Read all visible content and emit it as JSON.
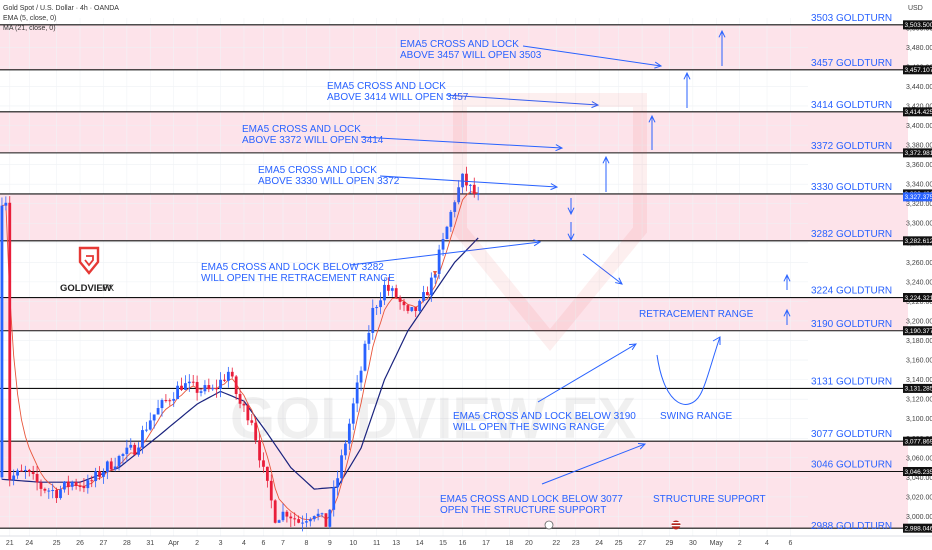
{
  "header": {
    "title": "Gold Spot / U.S. Dollar · 4h · OANDA",
    "ema": "EMA (5, close, 0)",
    "ma": "MA (21, close, 0)",
    "currency": "USD"
  },
  "logo": {
    "text": "GOLDVIEW",
    "suffix": " FX"
  },
  "watermark": "GOLDVIEW FX",
  "colors": {
    "band": "#fde3ea",
    "bull": "#2962ff",
    "bear": "#e91e3a",
    "ema": "#e8553b",
    "ma": "#1a237e",
    "accent": "#2962ff",
    "tag_bg": "#111111",
    "tag_current": "#2962ff"
  },
  "chart_data": {
    "type": "candlestick",
    "title": "Gold Spot / U.S. Dollar · 4h · OANDA",
    "ylim": [
      2980,
      3510
    ],
    "y_ticks": [
      3000,
      3020,
      3040,
      3060,
      3080,
      3100,
      3120,
      3140,
      3160,
      3180,
      3200,
      3220,
      3240,
      3260,
      3280,
      3300,
      3320,
      3340,
      3360,
      3380,
      3400,
      3420,
      3440,
      3460,
      3480,
      3500
    ],
    "x_ticks": [
      {
        "label": "21",
        "i": 2
      },
      {
        "label": "24",
        "i": 7
      },
      {
        "label": "25",
        "i": 14
      },
      {
        "label": "26",
        "i": 20
      },
      {
        "label": "27",
        "i": 26
      },
      {
        "label": "28",
        "i": 32
      },
      {
        "label": "31",
        "i": 38
      },
      {
        "label": "Apr",
        "i": 44
      },
      {
        "label": "2",
        "i": 50
      },
      {
        "label": "3",
        "i": 56
      },
      {
        "label": "4",
        "i": 62
      },
      {
        "label": "6",
        "i": 67
      },
      {
        "label": "7",
        "i": 72
      },
      {
        "label": "8",
        "i": 78
      },
      {
        "label": "9",
        "i": 84
      },
      {
        "label": "10",
        "i": 90
      },
      {
        "label": "11",
        "i": 96
      },
      {
        "label": "13",
        "i": 101
      },
      {
        "label": "14",
        "i": 107
      },
      {
        "label": "15",
        "i": 113
      },
      {
        "label": "16",
        "i": 118
      },
      {
        "label": "17",
        "i": 124
      },
      {
        "label": "18",
        "i": 130
      },
      {
        "label": "20",
        "i": 135
      },
      {
        "label": "22",
        "i": 142
      },
      {
        "label": "23",
        "i": 147
      },
      {
        "label": "24",
        "i": 153
      },
      {
        "label": "25",
        "i": 158
      },
      {
        "label": "27",
        "i": 164
      },
      {
        "label": "29",
        "i": 171
      },
      {
        "label": "30",
        "i": 177
      },
      {
        "label": "May",
        "i": 183
      },
      {
        "label": "2",
        "i": 189
      },
      {
        "label": "4",
        "i": 196
      },
      {
        "label": "6",
        "i": 202
      }
    ],
    "x_slots": 207,
    "levels": [
      {
        "value": 3503,
        "label": "3503 GOLDTURN",
        "tag": "3,503.500"
      },
      {
        "value": 3457,
        "label": "3457 GOLDTURN",
        "tag": "3,457.107"
      },
      {
        "value": 3414,
        "label": "3414 GOLDTURN",
        "tag": "3,414.425"
      },
      {
        "value": 3372,
        "label": "3372 GOLDTURN",
        "tag": "3,372.981"
      },
      {
        "value": 3330,
        "label": "3330 GOLDTURN",
        "tag": "3,330.421"
      },
      {
        "value": 3282,
        "label": "3282 GOLDTURN",
        "tag": "3,282.612"
      },
      {
        "value": 3224,
        "label": "3224 GOLDTURN",
        "tag": "3,224.321"
      },
      {
        "value": 3190,
        "label": "3190 GOLDTURN",
        "tag": "3,190.377"
      },
      {
        "value": 3131,
        "label": "3131 GOLDTURN",
        "tag": "3,131.285"
      },
      {
        "value": 3077,
        "label": "3077 GOLDTURN",
        "tag": "3,077.869"
      },
      {
        "value": 3046,
        "label": "3046 GOLDTURN",
        "tag": "3,046.235"
      },
      {
        "value": 2988,
        "label": "2988 GOLDTURN",
        "tag": "2,988.046"
      }
    ],
    "current_price": {
      "value": 3327,
      "tag": "3,327.375"
    },
    "bands": [
      [
        3457,
        3503
      ],
      [
        3372,
        3414
      ],
      [
        3282,
        3330
      ],
      [
        3190,
        3224
      ],
      [
        3046,
        3077
      ],
      [
        2988,
        3046
      ]
    ],
    "anchors": [
      {
        "i": 2,
        "v": 3040
      },
      {
        "i": 6,
        "v": 3045
      },
      {
        "i": 10,
        "v": 3030
      },
      {
        "i": 14,
        "v": 3025
      },
      {
        "i": 18,
        "v": 3035
      },
      {
        "i": 22,
        "v": 3032
      },
      {
        "i": 26,
        "v": 3048
      },
      {
        "i": 30,
        "v": 3060
      },
      {
        "i": 34,
        "v": 3070
      },
      {
        "i": 38,
        "v": 3100
      },
      {
        "i": 42,
        "v": 3118
      },
      {
        "i": 46,
        "v": 3135
      },
      {
        "i": 50,
        "v": 3130
      },
      {
        "i": 54,
        "v": 3128
      },
      {
        "i": 58,
        "v": 3148
      },
      {
        "i": 61,
        "v": 3115
      },
      {
        "i": 64,
        "v": 3100
      },
      {
        "i": 67,
        "v": 3045
      },
      {
        "i": 70,
        "v": 3000
      },
      {
        "i": 73,
        "v": 3005
      },
      {
        "i": 76,
        "v": 2995
      },
      {
        "i": 80,
        "v": 3005
      },
      {
        "i": 83,
        "v": 2992
      },
      {
        "i": 86,
        "v": 3040
      },
      {
        "i": 89,
        "v": 3095
      },
      {
        "i": 92,
        "v": 3150
      },
      {
        "i": 95,
        "v": 3210
      },
      {
        "i": 98,
        "v": 3235
      },
      {
        "i": 101,
        "v": 3225
      },
      {
        "i": 104,
        "v": 3205
      },
      {
        "i": 107,
        "v": 3215
      },
      {
        "i": 110,
        "v": 3240
      },
      {
        "i": 113,
        "v": 3280
      },
      {
        "i": 116,
        "v": 3325
      },
      {
        "i": 118,
        "v": 3345
      },
      {
        "i": 120,
        "v": 3335
      },
      {
        "i": 122,
        "v": 3325
      }
    ],
    "ma_anchors": [
      {
        "i": 0,
        "v": 3038
      },
      {
        "i": 10,
        "v": 3035
      },
      {
        "i": 20,
        "v": 3035
      },
      {
        "i": 30,
        "v": 3050
      },
      {
        "i": 40,
        "v": 3082
      },
      {
        "i": 50,
        "v": 3115
      },
      {
        "i": 56,
        "v": 3128
      },
      {
        "i": 62,
        "v": 3118
      },
      {
        "i": 68,
        "v": 3085
      },
      {
        "i": 74,
        "v": 3050
      },
      {
        "i": 80,
        "v": 3028
      },
      {
        "i": 86,
        "v": 3030
      },
      {
        "i": 92,
        "v": 3070
      },
      {
        "i": 98,
        "v": 3140
      },
      {
        "i": 104,
        "v": 3190
      },
      {
        "i": 110,
        "v": 3225
      },
      {
        "i": 116,
        "v": 3260
      },
      {
        "i": 122,
        "v": 3285
      }
    ],
    "series": [
      {
        "name": "EMA (5, close, 0)",
        "kind": "ema"
      },
      {
        "name": "MA (21, close, 0)",
        "kind": "ma"
      }
    ]
  },
  "annotations": [
    {
      "key": "a1",
      "lines": [
        "EMA5 CROSS AND LOCK",
        "ABOVE 3457 WILL OPEN 3503"
      ],
      "tx": 400,
      "ty": 47
    },
    {
      "key": "a2",
      "lines": [
        "EMA5 CROSS AND LOCK",
        "ABOVE 3414 WILL OPEN 3457"
      ],
      "tx": 327,
      "ty": 89
    },
    {
      "key": "a3",
      "lines": [
        "EMA5 CROSS AND LOCK",
        "ABOVE 3372 WILL OPEN 3414"
      ],
      "tx": 242,
      "ty": 132
    },
    {
      "key": "a4",
      "lines": [
        "EMA5 CROSS AND LOCK",
        "ABOVE 3330 WILL OPEN 3372"
      ],
      "tx": 258,
      "ty": 173
    },
    {
      "key": "a5",
      "lines": [
        "EMA5 CROSS AND LOCK BELOW 3282",
        "WILL OPEN THE RETRACEMENT RANGE"
      ],
      "tx": 201,
      "ty": 270
    },
    {
      "key": "a6",
      "lines": [
        "RETRACEMENT RANGE"
      ],
      "tx": 639,
      "ty": 317
    },
    {
      "key": "a7",
      "lines": [
        "EMA5 CROSS AND LOCK BELOW 3190",
        "WILL OPEN THE SWING RANGE"
      ],
      "tx": 453,
      "ty": 419
    },
    {
      "key": "a8",
      "lines": [
        "SWING RANGE"
      ],
      "tx": 660,
      "ty": 419
    },
    {
      "key": "a9",
      "lines": [
        "EMA5 CROSS AND LOCK BELOW 3077",
        "OPEN THE STRUCTURE SUPPORT"
      ],
      "tx": 440,
      "ty": 502
    },
    {
      "key": "a10",
      "lines": [
        "STRUCTURE SUPPORT"
      ],
      "tx": 653,
      "ty": 502
    }
  ]
}
